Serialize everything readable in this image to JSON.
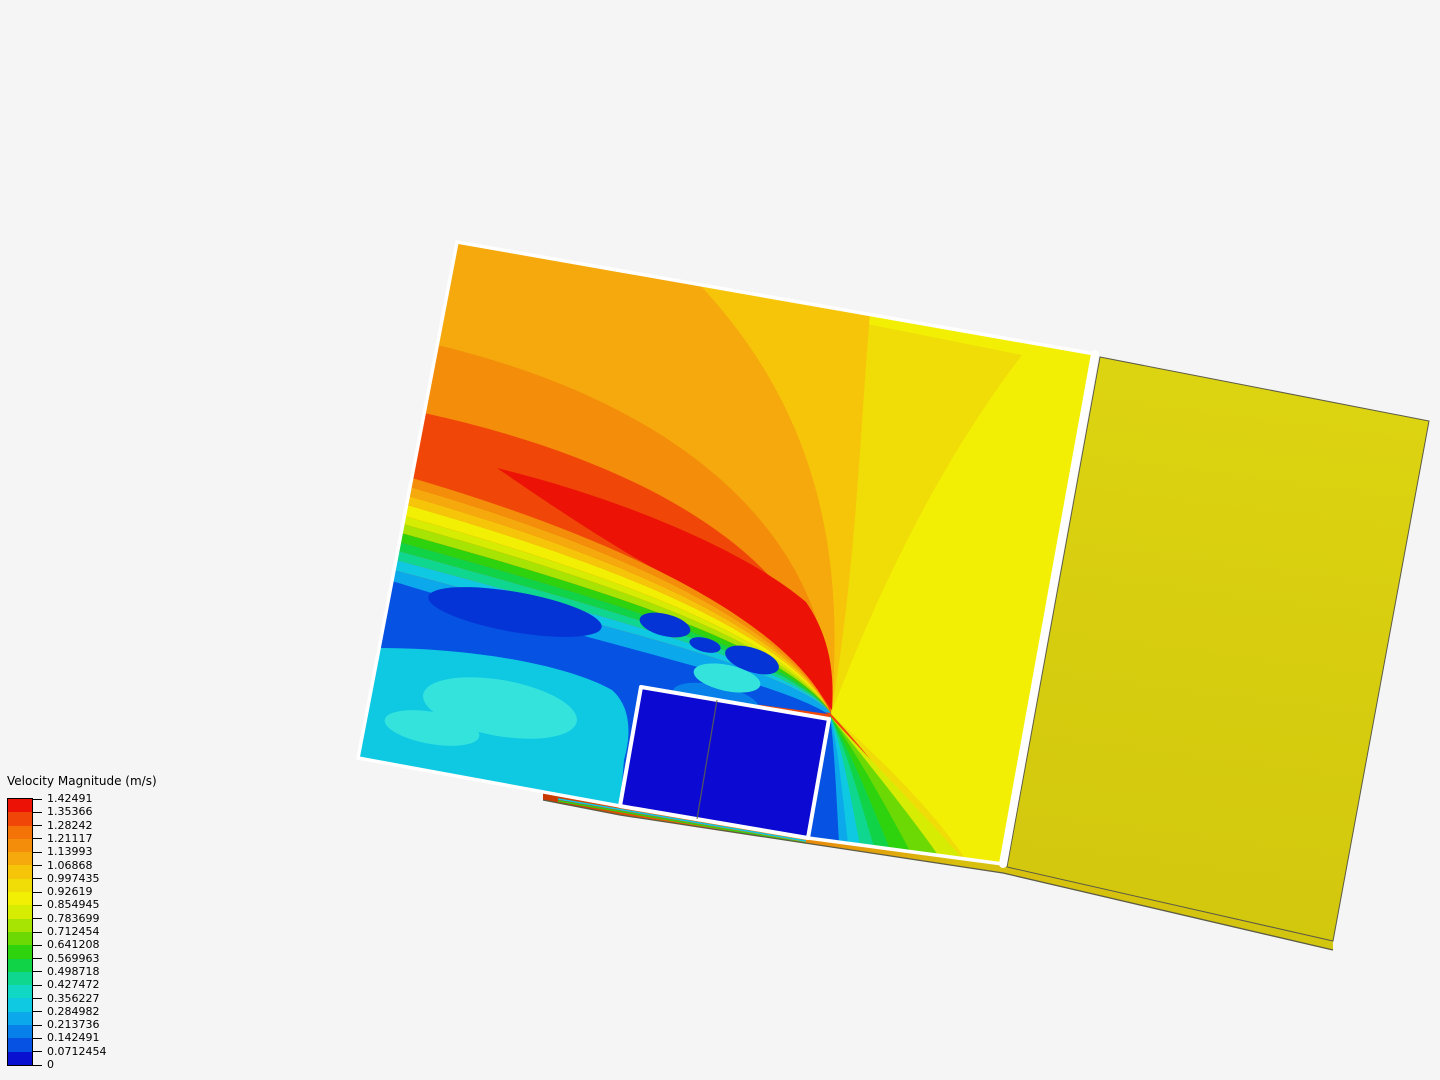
{
  "legend": {
    "title": "Velocity Magnitude (m/s)",
    "ticks": [
      "1.42491",
      "1.35366",
      "1.28242",
      "1.21117",
      "1.13993",
      "1.06868",
      "0.997435",
      "0.92619",
      "0.854945",
      "0.783699",
      "0.712454",
      "0.641208",
      "0.569963",
      "0.498718",
      "0.427472",
      "0.356227",
      "0.284982",
      "0.213736",
      "0.142491",
      "0.0712454",
      "0"
    ],
    "colors": [
      "#ec1306",
      "#f04708",
      "#f37309",
      "#f48d0a",
      "#f5a90c",
      "#f6c50a",
      "#f0dc07",
      "#f3ef04",
      "#d7ec03",
      "#a8e403",
      "#6cd905",
      "#2fd30d",
      "#11d348",
      "#10d78f",
      "#11d8c4",
      "#0fc9e3",
      "#0ba9eb",
      "#0880e9",
      "#0652e3",
      "#0a10cf"
    ]
  },
  "scene": {
    "description": "CFD cutting-plane contour of velocity magnitude around a rectangular obstacle with far field plane",
    "background": "#f5f5f5",
    "colors": {
      "white": "#ffffff",
      "outline_dark": "#5c5b45",
      "right_plane_top": "#dcd311",
      "right_plane_bottom": "#d2c70d",
      "box": "#0b09d2",
      "divider": "#63634a",
      "deep_blue": "#0433d6",
      "light_cyan": "#35e3dd",
      "ground_red": "#c83a02",
      "ground_orange": "#e8900a",
      "ground_yellow": "#d2c60f"
    }
  }
}
